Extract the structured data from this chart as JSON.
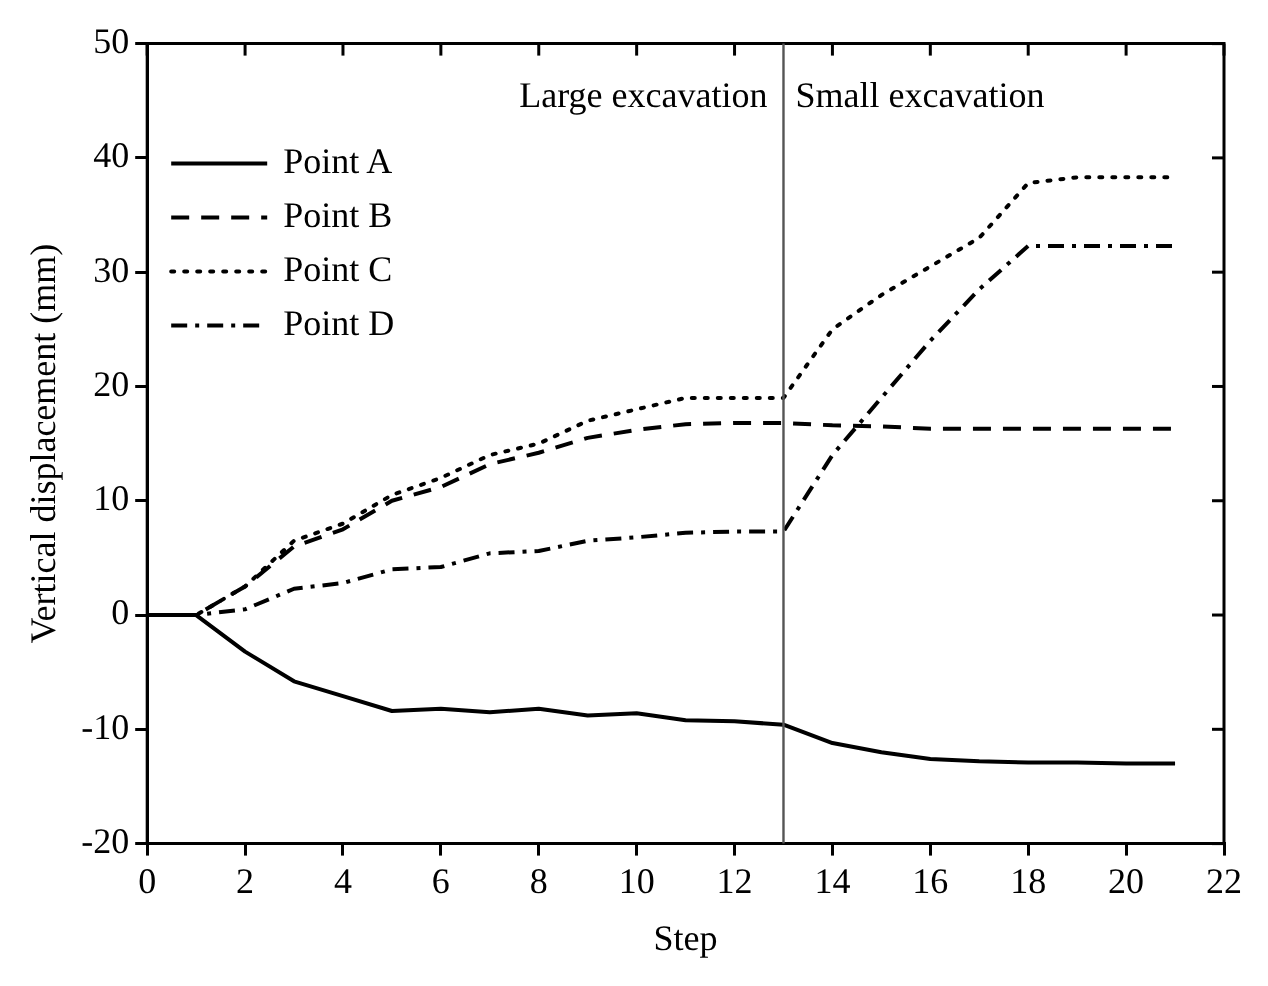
{
  "chart_data": {
    "type": "line",
    "xlabel": "Step",
    "ylabel": "Vertical displacement (mm)",
    "x": [
      0,
      1,
      2,
      3,
      4,
      5,
      6,
      7,
      8,
      9,
      10,
      11,
      12,
      13,
      14,
      15,
      16,
      17,
      18,
      19,
      20,
      21
    ],
    "xlim": [
      0,
      22
    ],
    "xticks": [
      0,
      2,
      4,
      6,
      8,
      10,
      12,
      14,
      16,
      18,
      20,
      22
    ],
    "ylim": [
      -20,
      50
    ],
    "yticks": [
      -20,
      -10,
      0,
      10,
      20,
      30,
      40,
      50
    ],
    "grid": false,
    "legend": "top left",
    "marker": "none",
    "ref_lines": [
      {
        "axis": "x",
        "value": 13,
        "color": "#555555"
      }
    ],
    "annotations": [
      "Large excavation",
      "Small excavation"
    ],
    "series": [
      {
        "name": "Point A",
        "color": "#000000",
        "line_style": "solid",
        "values": [
          0,
          0,
          -3.2,
          -5.8,
          -7.1,
          -8.4,
          -8.2,
          -8.5,
          -8.2,
          -8.8,
          -8.6,
          -9.2,
          -9.3,
          -9.6,
          -11.2,
          -12,
          -12.6,
          -12.8,
          -12.9,
          -12.9,
          -13,
          -13
        ]
      },
      {
        "name": "Point B",
        "color": "#000000",
        "line_style": "dashed",
        "values": [
          0,
          0,
          2.5,
          6,
          7.5,
          10,
          11.2,
          13.2,
          14.2,
          15.5,
          16.2,
          16.7,
          16.8,
          16.8,
          16.6,
          16.5,
          16.3,
          16.3,
          16.3,
          16.3,
          16.3,
          16.3
        ]
      },
      {
        "name": "Point C",
        "color": "#000000",
        "line_style": "dotted",
        "values": [
          0,
          0,
          2.5,
          6.5,
          8,
          10.5,
          12,
          14,
          15,
          17,
          18,
          19,
          19,
          19,
          25,
          28,
          30.5,
          33,
          37.8,
          38.3,
          38.3,
          38.3
        ]
      },
      {
        "name": "Point D",
        "color": "#000000",
        "line_style": "dashdot",
        "values": [
          0,
          0,
          0.5,
          2.3,
          2.8,
          4,
          4.2,
          5.4,
          5.6,
          6.5,
          6.8,
          7.2,
          7.3,
          7.3,
          14,
          19,
          24,
          28.5,
          32.3,
          32.3,
          32.3,
          32.3
        ]
      }
    ]
  }
}
